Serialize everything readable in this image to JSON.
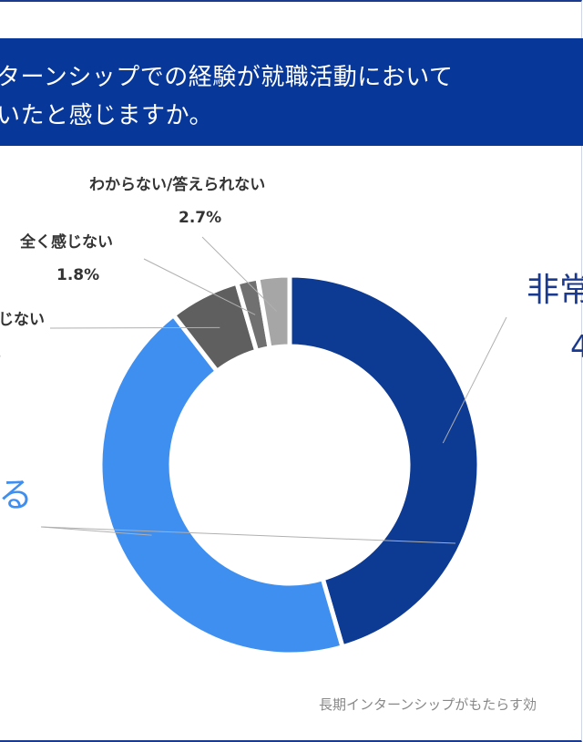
{
  "title": {
    "line1": "ターンシップでの経験が就職活動において",
    "line2": "いたと感じますか。"
  },
  "source": "長期インターンシップがもたらす効",
  "chart_data": {
    "type": "pie",
    "title": "",
    "slices": [
      {
        "label": "非常",
        "value": null,
        "color": "#0d3a93"
      },
      {
        "label": "る",
        "value": null,
        "color": "#3e8ff0"
      },
      {
        "label": "じない",
        "value": null,
        "color": "#5f5f5f"
      },
      {
        "label": "全く感じない",
        "value": 1.8,
        "display": "1.8%",
        "color": "#707070"
      },
      {
        "label": "わからない/答えられない",
        "value": 2.7,
        "display": "2.7%",
        "color": "#a6a6a6"
      }
    ],
    "approx_fractions": [
      0.455,
      0.44,
      0.06,
      0.018,
      0.027
    ],
    "partial_labels": {
      "right_value": "4",
      "left_value": "。"
    }
  }
}
